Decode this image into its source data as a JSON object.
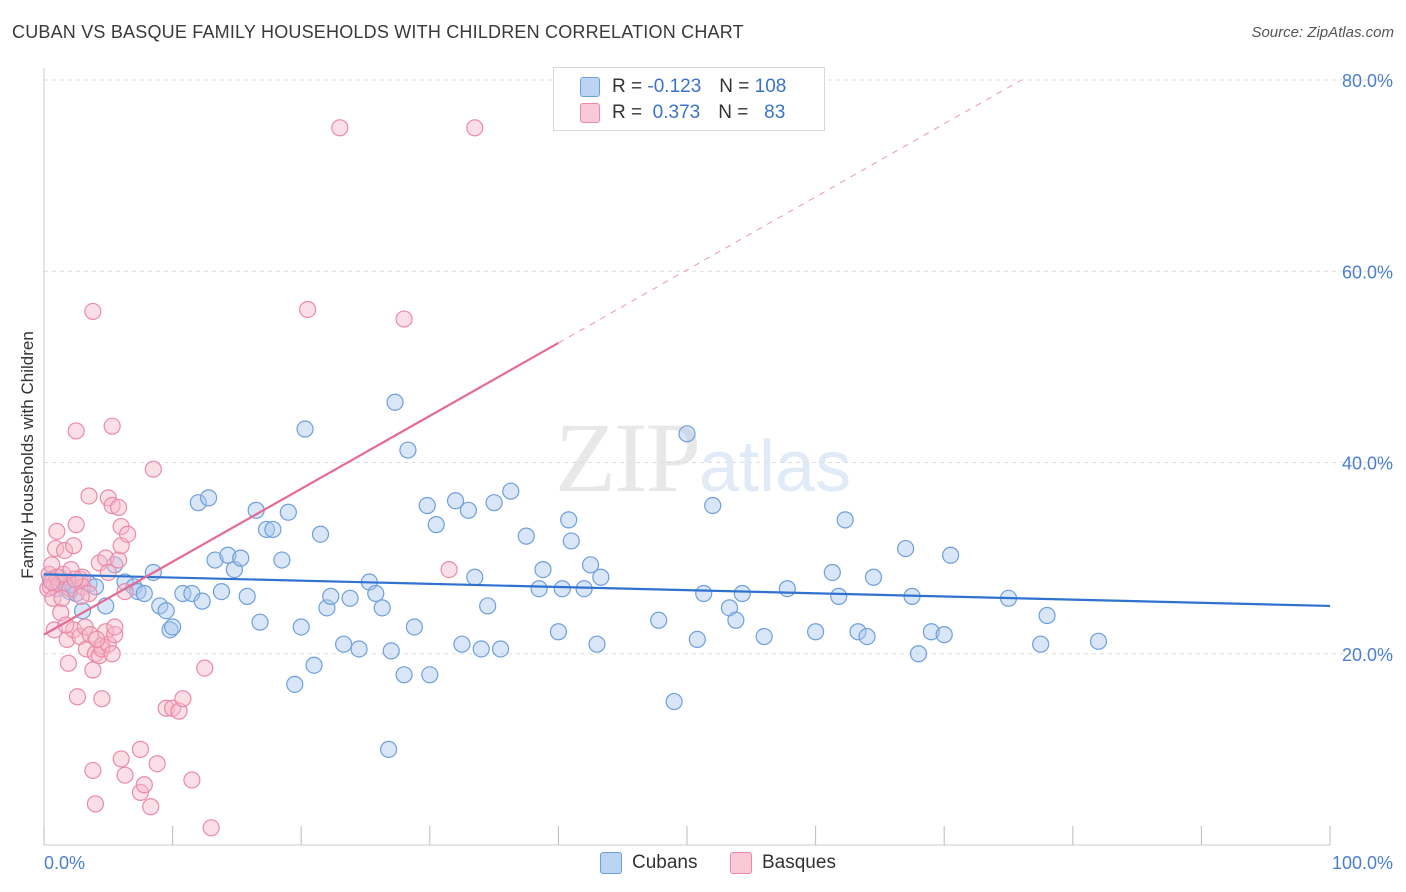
{
  "title": "CUBAN VS BASQUE FAMILY HOUSEHOLDS WITH CHILDREN CORRELATION CHART",
  "source": "Source: ZipAtlas.com",
  "watermark": {
    "zip": "ZIP",
    "atlas": "atlas"
  },
  "colors": {
    "cubans_fill": "#a9c8ef",
    "cubans_stroke": "#6f9fdb",
    "cubans_line": "#2f72cf",
    "basques_fill": "#f6b7c9",
    "basques_stroke": "#ea8aa8",
    "basques_line": "#e46b93",
    "tick_text": "#4a7fd0",
    "grid": "#dddddd"
  },
  "legend": {
    "cubans": {
      "r_label": "R =",
      "r_value": "-0.123",
      "n_label": "N =",
      "n_value": "108"
    },
    "basques": {
      "r_label": "R =",
      "r_value": "0.373",
      "n_label": "N =",
      "n_value": "83"
    }
  },
  "chart_data": {
    "type": "scatter",
    "title": "CUBAN VS BASQUE FAMILY HOUSEHOLDS WITH CHILDREN CORRELATION CHART",
    "xlabel": "",
    "ylabel": "Family Households with Children",
    "xlim": [
      0,
      100
    ],
    "ylim": [
      0,
      80
    ],
    "x_tick_labels": [
      "0.0%",
      "100.0%"
    ],
    "y_ticks": [
      20,
      40,
      60,
      80
    ],
    "y_tick_labels": [
      "20.0%",
      "40.0%",
      "60.0%",
      "80.0%"
    ],
    "grid": true,
    "legend_position": "bottom-center",
    "series": [
      {
        "name": "Cubans",
        "trendline": {
          "x": [
            0,
            100
          ],
          "y": [
            28.3,
            25.0
          ]
        },
        "points": [
          [
            0.5,
            27.8
          ],
          [
            0.8,
            27.3
          ],
          [
            1.0,
            26.8
          ],
          [
            1.2,
            28.0
          ],
          [
            1.5,
            27.5
          ],
          [
            1.8,
            27.0
          ],
          [
            2.0,
            26.5
          ],
          [
            2.2,
            27.2
          ],
          [
            2.5,
            26.3
          ],
          [
            3.0,
            24.5
          ],
          [
            3.5,
            27.3
          ],
          [
            4.0,
            27.0
          ],
          [
            4.8,
            25.0
          ],
          [
            5.5,
            29.3
          ],
          [
            6.3,
            27.5
          ],
          [
            7.0,
            27.0
          ],
          [
            7.3,
            26.5
          ],
          [
            7.8,
            26.3
          ],
          [
            8.5,
            28.5
          ],
          [
            9.0,
            25.0
          ],
          [
            9.5,
            24.5
          ],
          [
            9.8,
            22.5
          ],
          [
            10.0,
            22.8
          ],
          [
            10.8,
            26.3
          ],
          [
            11.5,
            26.3
          ],
          [
            12.0,
            35.8
          ],
          [
            12.3,
            25.5
          ],
          [
            12.8,
            36.3
          ],
          [
            13.3,
            29.8
          ],
          [
            13.8,
            26.5
          ],
          [
            14.3,
            30.3
          ],
          [
            14.8,
            28.8
          ],
          [
            15.3,
            30.0
          ],
          [
            15.8,
            26.0
          ],
          [
            16.5,
            35.0
          ],
          [
            16.8,
            23.3
          ],
          [
            17.3,
            33.0
          ],
          [
            17.8,
            33.0
          ],
          [
            18.5,
            29.8
          ],
          [
            19.0,
            34.8
          ],
          [
            19.5,
            16.8
          ],
          [
            20.0,
            22.8
          ],
          [
            20.3,
            43.5
          ],
          [
            21.0,
            18.8
          ],
          [
            21.5,
            32.5
          ],
          [
            22.0,
            24.8
          ],
          [
            22.3,
            26.0
          ],
          [
            23.3,
            21.0
          ],
          [
            23.8,
            25.8
          ],
          [
            24.5,
            20.5
          ],
          [
            25.3,
            27.5
          ],
          [
            25.8,
            26.3
          ],
          [
            26.3,
            24.8
          ],
          [
            26.8,
            10.0
          ],
          [
            27.0,
            20.3
          ],
          [
            27.3,
            46.3
          ],
          [
            28.0,
            17.8
          ],
          [
            28.3,
            41.3
          ],
          [
            28.8,
            22.8
          ],
          [
            29.8,
            35.5
          ],
          [
            30.0,
            17.8
          ],
          [
            30.5,
            33.5
          ],
          [
            32.0,
            36.0
          ],
          [
            32.5,
            21.0
          ],
          [
            33.0,
            35.0
          ],
          [
            33.5,
            28.0
          ],
          [
            34.0,
            20.5
          ],
          [
            34.5,
            25.0
          ],
          [
            35.0,
            35.8
          ],
          [
            35.5,
            20.5
          ],
          [
            36.3,
            37.0
          ],
          [
            37.5,
            32.3
          ],
          [
            38.5,
            26.8
          ],
          [
            38.8,
            28.8
          ],
          [
            40.0,
            22.3
          ],
          [
            40.3,
            26.8
          ],
          [
            40.8,
            34.0
          ],
          [
            41.0,
            31.8
          ],
          [
            42.0,
            26.8
          ],
          [
            42.5,
            29.3
          ],
          [
            43.0,
            21.0
          ],
          [
            43.3,
            28.0
          ],
          [
            47.8,
            23.5
          ],
          [
            49.0,
            15.0
          ],
          [
            50.0,
            43.0
          ],
          [
            50.8,
            21.5
          ],
          [
            51.3,
            26.3
          ],
          [
            52.0,
            35.5
          ],
          [
            53.3,
            24.8
          ],
          [
            53.8,
            23.5
          ],
          [
            54.3,
            26.3
          ],
          [
            56.0,
            21.8
          ],
          [
            57.8,
            26.8
          ],
          [
            60.0,
            22.3
          ],
          [
            61.3,
            28.5
          ],
          [
            61.8,
            26.0
          ],
          [
            62.3,
            34.0
          ],
          [
            63.3,
            22.3
          ],
          [
            64.0,
            21.8
          ],
          [
            64.5,
            28.0
          ],
          [
            67.0,
            31.0
          ],
          [
            67.5,
            26.0
          ],
          [
            68.0,
            20.0
          ],
          [
            69.0,
            22.3
          ],
          [
            70.0,
            22.0
          ],
          [
            70.5,
            30.3
          ],
          [
            75.0,
            25.8
          ],
          [
            77.5,
            21.0
          ],
          [
            78.0,
            24.0
          ],
          [
            82.0,
            21.3
          ]
        ]
      },
      {
        "name": "Basques",
        "trendline": {
          "x": [
            0,
            40
          ],
          "y": [
            22.0,
            52.5
          ],
          "dashed_extension": {
            "x": [
              40,
              76
            ],
            "y": [
              52.5,
              80
            ]
          }
        },
        "points": [
          [
            0.3,
            26.8
          ],
          [
            0.4,
            28.3
          ],
          [
            0.5,
            27.0
          ],
          [
            0.6,
            29.3
          ],
          [
            0.7,
            25.8
          ],
          [
            0.8,
            22.5
          ],
          [
            0.9,
            31.0
          ],
          [
            1.0,
            28.0
          ],
          [
            1.0,
            32.8
          ],
          [
            1.2,
            27.3
          ],
          [
            1.3,
            24.3
          ],
          [
            1.5,
            28.3
          ],
          [
            1.6,
            30.8
          ],
          [
            1.8,
            21.5
          ],
          [
            1.9,
            19.0
          ],
          [
            2.0,
            26.8
          ],
          [
            2.1,
            28.8
          ],
          [
            2.3,
            31.3
          ],
          [
            2.3,
            22.5
          ],
          [
            2.5,
            43.3
          ],
          [
            2.5,
            33.5
          ],
          [
            2.6,
            15.5
          ],
          [
            2.8,
            21.8
          ],
          [
            2.8,
            27.8
          ],
          [
            3.0,
            28.0
          ],
          [
            3.0,
            27.0
          ],
          [
            3.2,
            22.8
          ],
          [
            3.3,
            20.5
          ],
          [
            3.5,
            26.3
          ],
          [
            3.5,
            36.5
          ],
          [
            3.8,
            18.3
          ],
          [
            3.8,
            7.8
          ],
          [
            3.8,
            55.8
          ],
          [
            4.0,
            20.0
          ],
          [
            4.0,
            4.3
          ],
          [
            4.3,
            29.5
          ],
          [
            4.3,
            19.8
          ],
          [
            4.5,
            20.8
          ],
          [
            4.5,
            15.3
          ],
          [
            4.5,
            20.5
          ],
          [
            4.8,
            22.3
          ],
          [
            4.8,
            30.0
          ],
          [
            5.0,
            36.3
          ],
          [
            5.0,
            21.0
          ],
          [
            5.0,
            28.5
          ],
          [
            5.3,
            43.8
          ],
          [
            5.3,
            20.0
          ],
          [
            5.3,
            35.5
          ],
          [
            5.5,
            22.0
          ],
          [
            5.5,
            22.8
          ],
          [
            5.8,
            35.3
          ],
          [
            5.8,
            29.8
          ],
          [
            6.0,
            33.3
          ],
          [
            6.0,
            31.3
          ],
          [
            6.0,
            9.0
          ],
          [
            6.3,
            26.5
          ],
          [
            6.3,
            7.3
          ],
          [
            6.5,
            32.5
          ],
          [
            7.5,
            10.0
          ],
          [
            7.5,
            5.5
          ],
          [
            7.8,
            6.3
          ],
          [
            8.3,
            4.0
          ],
          [
            8.5,
            39.3
          ],
          [
            8.8,
            8.5
          ],
          [
            9.5,
            14.3
          ],
          [
            10.0,
            14.3
          ],
          [
            10.5,
            14.0
          ],
          [
            10.8,
            15.3
          ],
          [
            11.5,
            6.8
          ],
          [
            12.5,
            18.5
          ],
          [
            13.0,
            1.8
          ],
          [
            20.5,
            56.0
          ],
          [
            23.0,
            75.0
          ],
          [
            28.0,
            55.0
          ],
          [
            31.5,
            28.8
          ],
          [
            33.5,
            75.0
          ],
          [
            1.4,
            25.8
          ],
          [
            2.4,
            27.8
          ],
          [
            3.6,
            22.0
          ],
          [
            1.7,
            23.0
          ],
          [
            0.6,
            27.5
          ],
          [
            2.9,
            26.0
          ],
          [
            4.1,
            21.5
          ]
        ]
      }
    ]
  }
}
